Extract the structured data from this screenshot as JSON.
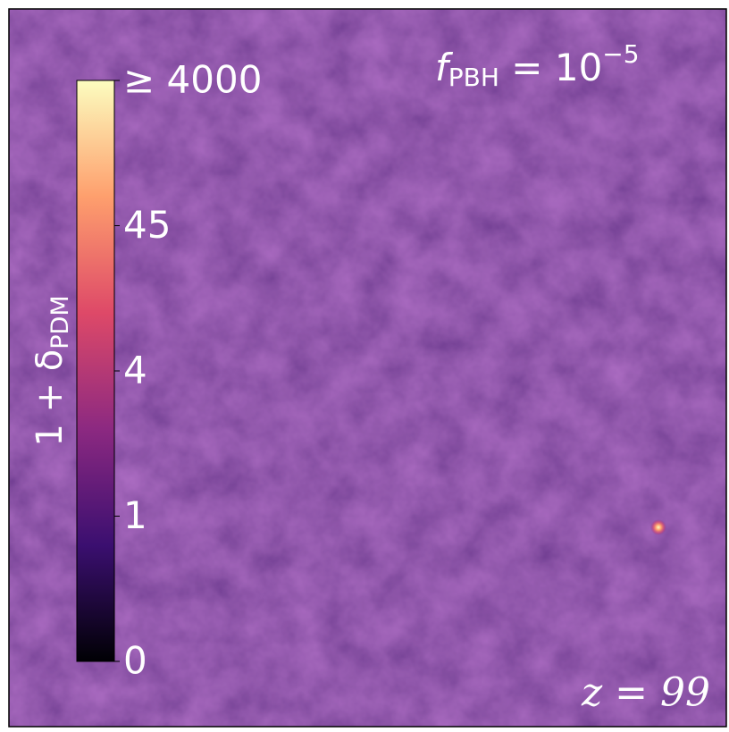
{
  "chart_data": {
    "type": "image",
    "title": {
      "symbol": "f",
      "subscript": "PBH",
      "relation": " = 10",
      "superscript": "−5"
    },
    "annotation": "z = 99",
    "colorbar": {
      "label": {
        "main": "1 + δ",
        "subscript": "PDM"
      },
      "colormap": [
        "#000004",
        "#3b0f70",
        "#8c2981",
        "#de4968",
        "#fe9f6d",
        "#fcfdbf"
      ],
      "ticks": [
        0,
        1,
        4,
        45,
        {
          "value": 4000,
          "label": "≥ 4000"
        }
      ]
    }
  }
}
